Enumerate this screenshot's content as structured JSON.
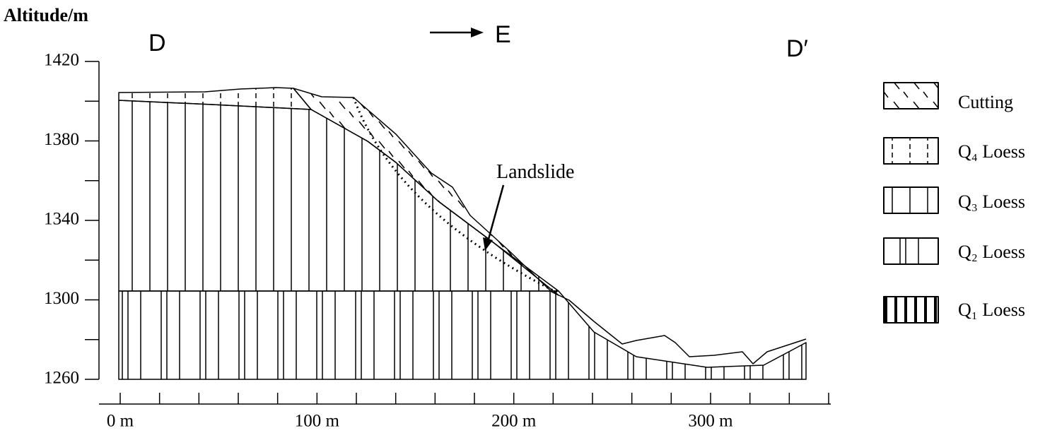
{
  "axes": {
    "y_label": "Altitude/m",
    "yticks": [
      1260,
      1300,
      1340,
      1380,
      1420
    ],
    "xticks": [
      {
        "value": 0,
        "label": "0 m"
      },
      {
        "value": 100,
        "label": "100 m"
      },
      {
        "value": 200,
        "label": "200 m"
      },
      {
        "value": 300,
        "label": "300 m"
      }
    ]
  },
  "labels": {
    "start": "D",
    "direction": "E",
    "end": "D′",
    "landslide": "Landslide"
  },
  "legend": [
    "Cutting",
    "Q₄ Loess",
    "Q₃ Loess",
    "Q₂ Loess",
    "Q₁ Loess"
  ]
}
